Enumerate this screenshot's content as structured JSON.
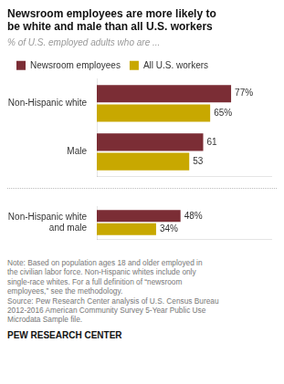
{
  "chart_data": [
    {
      "type": "bar",
      "orientation": "horizontal",
      "title": "Newsroom employees are more likely to\nbe white and male than all U.S. workers",
      "subtitle": "% of U.S. employed adults who are ...",
      "categories": [
        "Non-Hispanic white",
        "Male"
      ],
      "series": [
        {
          "name": "Newsroom employees",
          "color": "#7B2D35",
          "values": [
            77,
            61
          ],
          "value_labels": [
            "77%",
            "61"
          ]
        },
        {
          "name": "All U.S. workers",
          "color": "#C8A800",
          "values": [
            65,
            53
          ],
          "value_labels": [
            "65%",
            "53"
          ]
        }
      ],
      "xlim": [
        0,
        100
      ],
      "grid": false,
      "legend": "top",
      "data_labels": true,
      "tick_labels": "y"
    },
    {
      "type": "bar",
      "orientation": "horizontal",
      "categories": [
        "Non-Hispanic white\nand male"
      ],
      "series": [
        {
          "color": "#7B2D35",
          "values": [
            48
          ],
          "value_labels": [
            "48%"
          ]
        },
        {
          "color": "#C8A800",
          "values": [
            34
          ],
          "value_labels": [
            "34%"
          ]
        }
      ],
      "xlim": [
        0,
        100
      ],
      "grid": false,
      "data_labels": true,
      "tick_labels": "y",
      "notes": [
        "Note: Based on population ages 18 and older employed in",
        "the civilian labor force. Non-Hispanic whites include only",
        "single-race whites. For a full definition of “newsroom",
        "employees,” see the methodology.",
        "Source: Pew Research Center analysis of U.S. Census Bureau",
        "2012-2016 American Community Survey 5-Year Public Use",
        "Microdata Sample file."
      ],
      "footer": "PEW RESEARCH CENTER"
    }
  ]
}
